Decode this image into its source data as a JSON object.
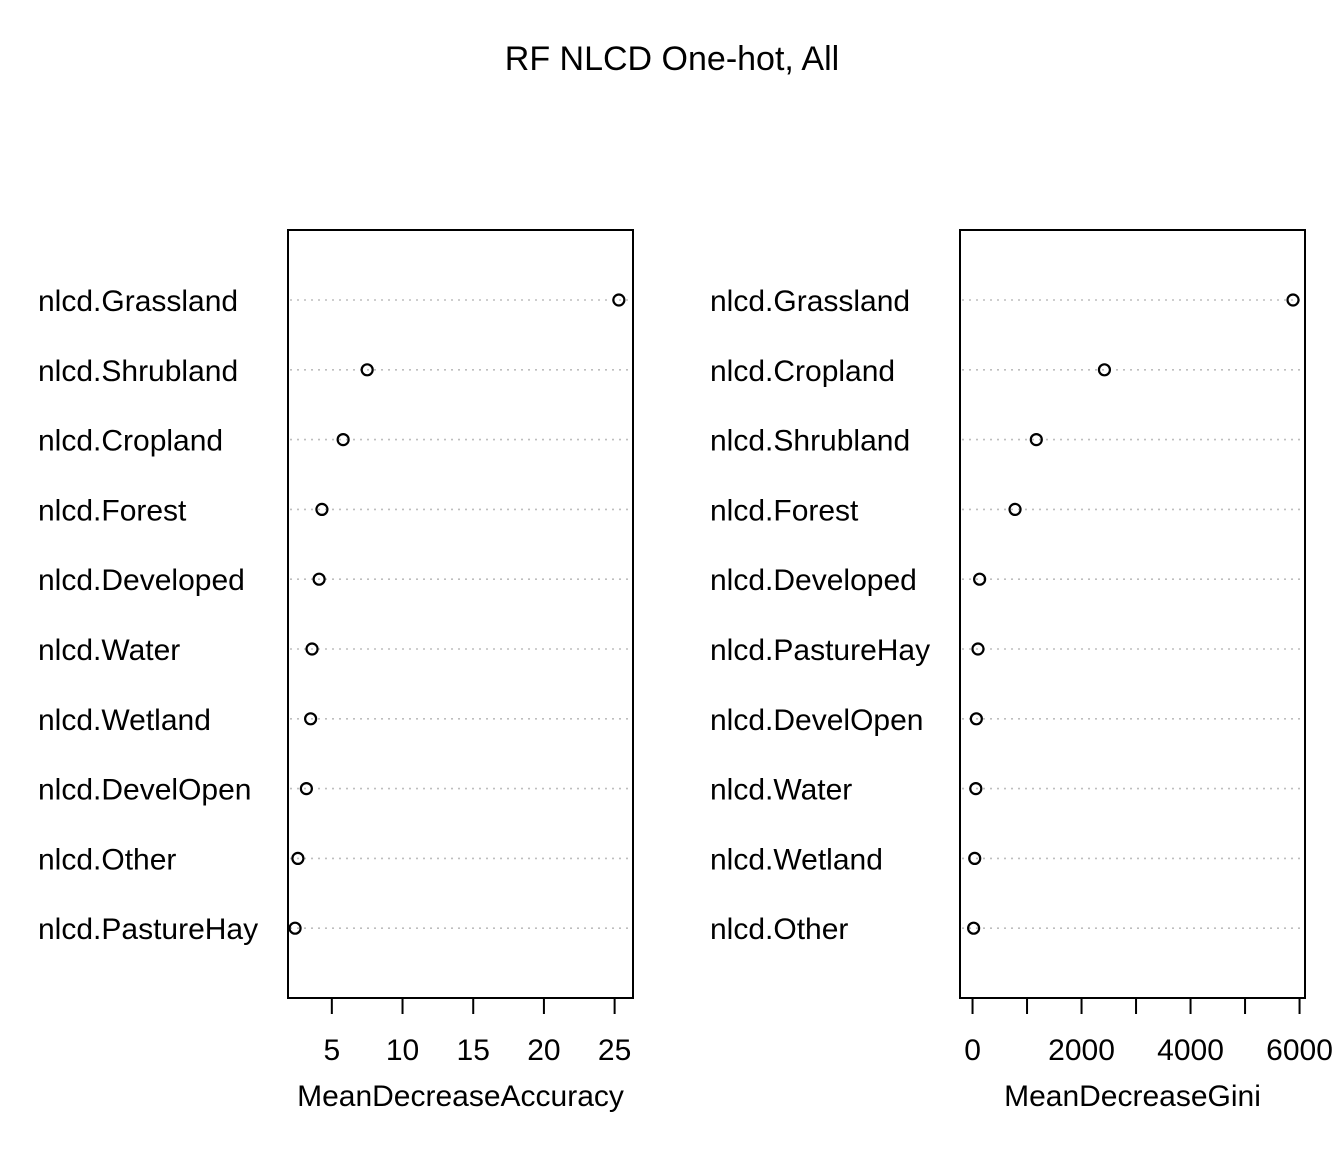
{
  "chart_data": {
    "type": "scatter",
    "title": "RF NLCD One-hot, All",
    "panels": [
      {
        "xlabel": "MeanDecreaseAccuracy",
        "xticks": [
          5,
          10,
          15,
          20,
          25
        ],
        "xlim": [
          1.9,
          26.3
        ],
        "categories": [
          "nlcd.Grassland",
          "nlcd.Shrubland",
          "nlcd.Cropland",
          "nlcd.Forest",
          "nlcd.Developed",
          "nlcd.Water",
          "nlcd.Wetland",
          "nlcd.DevelOpen",
          "nlcd.Other",
          "nlcd.PastureHay"
        ],
        "values": [
          25.3,
          7.5,
          5.8,
          4.3,
          4.1,
          3.6,
          3.5,
          3.2,
          2.6,
          2.4
        ]
      },
      {
        "xlabel": "MeanDecreaseGini",
        "xticks": [
          0,
          1000,
          2000,
          3000,
          4000,
          5000,
          6000
        ],
        "xtick_labels": [
          "0",
          "",
          "2000",
          "",
          "4000",
          "",
          "6000"
        ],
        "xlim": [
          -230,
          6100
        ],
        "categories": [
          "nlcd.Grassland",
          "nlcd.Cropland",
          "nlcd.Shrubland",
          "nlcd.Forest",
          "nlcd.Developed",
          "nlcd.PastureHay",
          "nlcd.DevelOpen",
          "nlcd.Water",
          "nlcd.Wetland",
          "nlcd.Other"
        ],
        "values": [
          5880,
          2420,
          1170,
          780,
          130,
          100,
          70,
          60,
          40,
          20
        ]
      }
    ]
  }
}
